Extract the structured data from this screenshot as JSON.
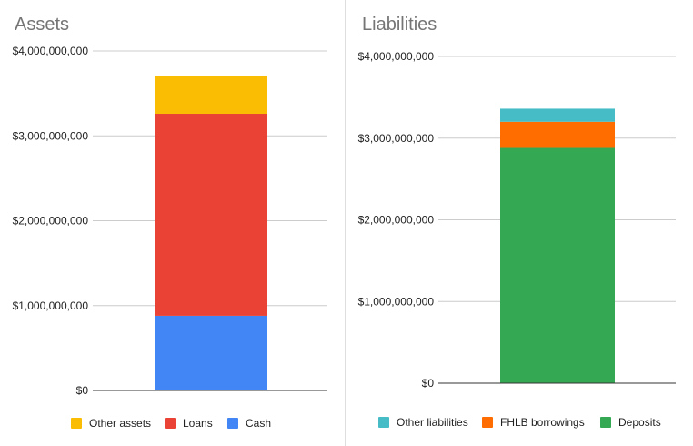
{
  "chart_data": [
    {
      "type": "bar",
      "stacked": true,
      "title": "Assets",
      "xlabel": "",
      "ylabel": "",
      "ylim": [
        0,
        4000000000
      ],
      "grid": true,
      "legend": "bottom",
      "y_ticks": [
        "$0",
        "$1,000,000,000",
        "$2,000,000,000",
        "$3,000,000,000",
        "$4,000,000,000"
      ],
      "categories": [
        ""
      ],
      "series": [
        {
          "name": "Cash",
          "color": "#4285f4",
          "values": [
            880000000
          ]
        },
        {
          "name": "Loans",
          "color": "#ea4335",
          "values": [
            2380000000
          ]
        },
        {
          "name": "Other assets",
          "color": "#fbbc04",
          "values": [
            440000000
          ]
        }
      ],
      "legend_order": [
        "Other assets",
        "Loans",
        "Cash"
      ]
    },
    {
      "type": "bar",
      "stacked": true,
      "title": "Liabilities",
      "xlabel": "",
      "ylabel": "",
      "ylim": [
        0,
        4000000000
      ],
      "grid": true,
      "legend": "bottom",
      "y_ticks": [
        "$0",
        "$1,000,000,000",
        "$2,000,000,000",
        "$3,000,000,000",
        "$4,000,000,000"
      ],
      "categories": [
        ""
      ],
      "series": [
        {
          "name": "Deposits",
          "color": "#34a853",
          "values": [
            2880000000
          ]
        },
        {
          "name": "FHLB borrowings",
          "color": "#ff6d01",
          "values": [
            320000000
          ]
        },
        {
          "name": "Other liabilities",
          "color": "#46bdc6",
          "values": [
            160000000
          ]
        }
      ],
      "legend_order": [
        "Other liabilities",
        "FHLB borrowings",
        "Deposits"
      ]
    }
  ]
}
